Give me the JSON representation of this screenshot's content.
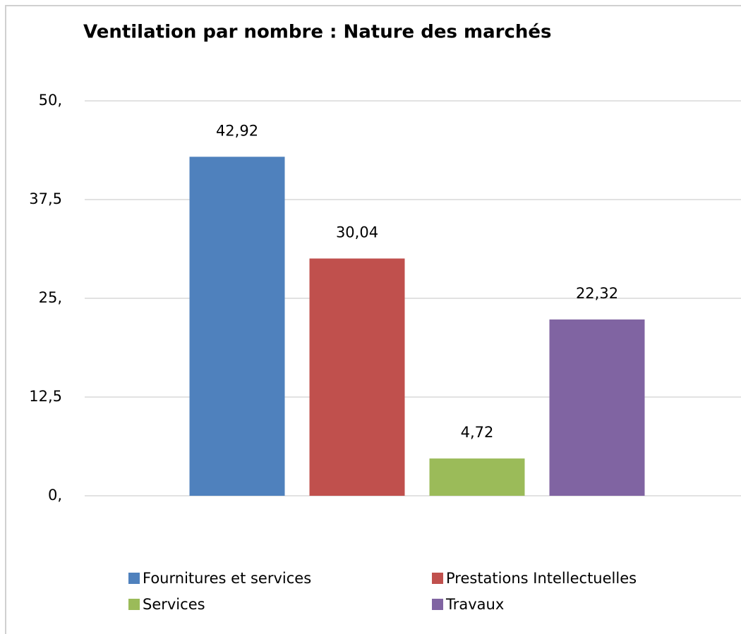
{
  "chart_data": {
    "type": "bar",
    "title": "Ventilation par nombre : Nature des marchés",
    "categories": [
      null
    ],
    "series": [
      {
        "name": "Fournitures et services",
        "color": "#4f81bd",
        "values": [
          42.92
        ],
        "value_labels": [
          "42,92"
        ]
      },
      {
        "name": "Prestations Intellectuelles",
        "color": "#c0504d",
        "values": [
          30.04
        ],
        "value_labels": [
          "30,04"
        ]
      },
      {
        "name": "Services",
        "color": "#9bbb59",
        "values": [
          4.72
        ],
        "value_labels": [
          "4,72"
        ]
      },
      {
        "name": "Travaux",
        "color": "#8064a2",
        "values": [
          22.32
        ],
        "value_labels": [
          "22,32"
        ]
      }
    ],
    "ylim": [
      0,
      50
    ],
    "yticks": [
      {
        "value": 0,
        "label": "0,"
      },
      {
        "value": 12.5,
        "label": "12,5"
      },
      {
        "value": 25,
        "label": "25,"
      },
      {
        "value": 37.5,
        "label": "37,5"
      },
      {
        "value": 50,
        "label": "50,"
      }
    ],
    "grid": true,
    "legend": "bottom"
  }
}
